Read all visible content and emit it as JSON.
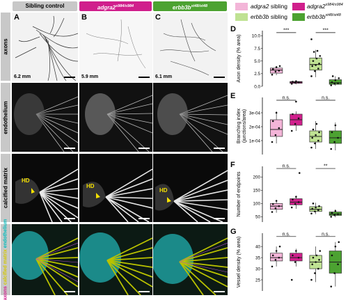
{
  "headers": {
    "col_a": "Sibling control",
    "col_b_main": "adgra2",
    "col_b_sup": "s984/s984",
    "col_c_main": "erbb3b",
    "col_c_sup": "st48/st48"
  },
  "row_labels": {
    "r1": "axons",
    "r2": "endothelium",
    "r3": "calcified matrix",
    "r4_a": "axons",
    "r4_b": "calcified matrix",
    "r4_c": "endothelium"
  },
  "panel_letters": {
    "a": "A",
    "b": "B",
    "c": "C",
    "d": "D",
    "e": "E",
    "f": "F",
    "g": "G"
  },
  "lengths": {
    "a": "6.2 mm",
    "b": "5.9 mm",
    "c": "6.1 mm"
  },
  "hd_labels": {
    "a": "HD",
    "b": "HD",
    "c": "HD"
  },
  "legend": {
    "adgra2_sib_main": "adgra2",
    "adgra2_sib_rest": " sibling",
    "adgra2_mut_main": "adgra2",
    "adgra2_mut_sup": "s984/s984",
    "erbb3b_sib_main": "erbb3b",
    "erbb3b_sib_rest": " sibling",
    "erbb3b_mut_main": "erbb3b",
    "erbb3b_mut_sup": "st48/st48"
  },
  "colors": {
    "adgra2_sibling": "#f3b5d8",
    "adgra2_mutant": "#d01f8c",
    "erbb3b_sibling": "#bfe293",
    "erbb3b_mutant": "#4ca231",
    "header_gray": "#c8c8c8"
  },
  "chart_data": [
    {
      "panel": "D",
      "type": "box",
      "ylabel": "Axon density (% area)",
      "yticks": [
        "0.0",
        "2.5",
        "5.0",
        "7.5",
        "10.0"
      ],
      "ylim": [
        0,
        11
      ],
      "groups": [
        {
          "name": "adgra2 sibling",
          "median": 3.2,
          "q1": 2.6,
          "q3": 3.6,
          "whislo": 2.2,
          "whishi": 4.0,
          "points": [
            2.3,
            2.9,
            3.1,
            3.4,
            3.8,
            4.0
          ]
        },
        {
          "name": "adgra2 mutant",
          "median": 0.8,
          "q1": 0.6,
          "q3": 0.95,
          "whislo": 0.4,
          "whishi": 1.1,
          "points": [
            0.5,
            0.7,
            0.8,
            0.9,
            1.0
          ]
        },
        {
          "name": "erbb3b sibling",
          "median": 4.3,
          "q1": 3.2,
          "q3": 5.6,
          "whislo": 1.8,
          "whishi": 7.2,
          "points": [
            2.0,
            3.0,
            3.5,
            4.0,
            4.2,
            4.5,
            5.0,
            5.5,
            6.0,
            6.8,
            7.0,
            9.3
          ]
        },
        {
          "name": "erbb3b mutant",
          "median": 0.7,
          "q1": 0.4,
          "q3": 1.3,
          "whislo": 0.1,
          "whishi": 2.0,
          "points": [
            0.2,
            0.5,
            0.6,
            0.8,
            1.2,
            1.6,
            2.0
          ]
        }
      ],
      "comparisons": [
        {
          "pair": [
            0,
            1
          ],
          "label": "***",
          "y": 10.6
        },
        {
          "pair": [
            2,
            3
          ],
          "label": "***",
          "y": 10.6
        }
      ]
    },
    {
      "panel": "E",
      "type": "box",
      "ylabel": "Branching index",
      "ylabel2": "(junctions/area)",
      "yticks": [
        "1e-04",
        "2e-04",
        "3e-04"
      ],
      "ylim": [
        0,
        0.00041
      ],
      "groups": [
        {
          "name": "adgra2 sibling",
          "median": 0.00018,
          "q1": 0.00013,
          "q3": 0.00025,
          "whislo": 8e-05,
          "whishi": 0.00031,
          "points": [
            9e-05,
            0.00014,
            0.00019,
            0.00024,
            0.0003
          ]
        },
        {
          "name": "adgra2 mutant",
          "median": 0.00025,
          "q1": 0.00021,
          "q3": 0.00029,
          "whislo": 0.00017,
          "whishi": 0.00031,
          "points": [
            0.00017,
            0.00022,
            0.00026,
            0.00029,
            0.00038
          ]
        },
        {
          "name": "erbb3b sibling",
          "median": 0.00013,
          "q1": 9e-05,
          "q3": 0.00017,
          "whislo": 4e-05,
          "whishi": 0.00024,
          "points": [
            5e-05,
            8e-05,
            0.0001,
            0.00012,
            0.00014,
            0.00016,
            0.00018,
            0.00022
          ]
        },
        {
          "name": "erbb3b mutant",
          "median": 0.00012,
          "q1": 8e-05,
          "q3": 0.00017,
          "whislo": 3e-05,
          "whishi": 0.00023,
          "points": [
            4e-05,
            9e-05,
            0.00012,
            0.00016,
            0.00021
          ]
        }
      ],
      "comparisons": [
        {
          "pair": [
            0,
            1
          ],
          "label": "n.s.",
          "y": 0.00039
        },
        {
          "pair": [
            2,
            3
          ],
          "label": "n.s.",
          "y": 0.00039
        }
      ]
    },
    {
      "panel": "F",
      "type": "box",
      "ylabel": "Number of endpoints",
      "yticks": [
        "50",
        "100",
        "150",
        "200"
      ],
      "ylim": [
        30,
        240
      ],
      "groups": [
        {
          "name": "adgra2 sibling",
          "median": 90,
          "q1": 78,
          "q3": 100,
          "whislo": 65,
          "whishi": 112,
          "points": [
            68,
            82,
            90,
            98,
            110
          ]
        },
        {
          "name": "adgra2 mutant",
          "median": 105,
          "q1": 95,
          "q3": 118,
          "whislo": 80,
          "whishi": 130,
          "points": [
            85,
            98,
            105,
            115,
            125,
            215
          ]
        },
        {
          "name": "erbb3b sibling",
          "median": 78,
          "q1": 70,
          "q3": 88,
          "whislo": 60,
          "whishi": 103,
          "points": [
            62,
            70,
            75,
            80,
            85,
            90,
            100
          ]
        },
        {
          "name": "erbb3b mutant",
          "median": 60,
          "q1": 55,
          "q3": 68,
          "whislo": 48,
          "whishi": 78,
          "points": [
            50,
            56,
            60,
            65,
            72
          ]
        }
      ],
      "comparisons": [
        {
          "pair": [
            0,
            1
          ],
          "label": "n.s.",
          "y": 232
        },
        {
          "pair": [
            2,
            3
          ],
          "label": "**",
          "y": 232
        }
      ]
    },
    {
      "panel": "G",
      "type": "box",
      "ylabel": "Vessel density (% area)",
      "yticks": [
        "25",
        "30",
        "35",
        "40"
      ],
      "ylim": [
        20,
        46
      ],
      "groups": [
        {
          "name": "adgra2 sibling",
          "median": 35,
          "q1": 33.5,
          "q3": 37,
          "whislo": 31,
          "whishi": 40,
          "points": [
            31,
            34,
            35,
            36,
            38,
            40
          ]
        },
        {
          "name": "adgra2 mutant",
          "median": 35,
          "q1": 33.5,
          "q3": 37,
          "whislo": 31,
          "whishi": 39,
          "points": [
            25,
            33,
            35,
            36,
            38
          ]
        },
        {
          "name": "erbb3b sibling",
          "median": 33,
          "q1": 30,
          "q3": 36,
          "whislo": 24,
          "whishi": 40,
          "points": [
            25,
            28,
            30,
            32,
            33,
            34,
            35,
            36,
            38
          ]
        },
        {
          "name": "erbb3b mutant",
          "median": 33,
          "q1": 28,
          "q3": 38,
          "whislo": 22,
          "whishi": 42,
          "points": [
            22,
            28,
            32,
            36,
            40,
            42
          ]
        }
      ],
      "comparisons": [
        {
          "pair": [
            0,
            1
          ],
          "label": "n.s.",
          "y": 44.5
        },
        {
          "pair": [
            2,
            3
          ],
          "label": "n.s.",
          "y": 44.5
        }
      ]
    }
  ]
}
